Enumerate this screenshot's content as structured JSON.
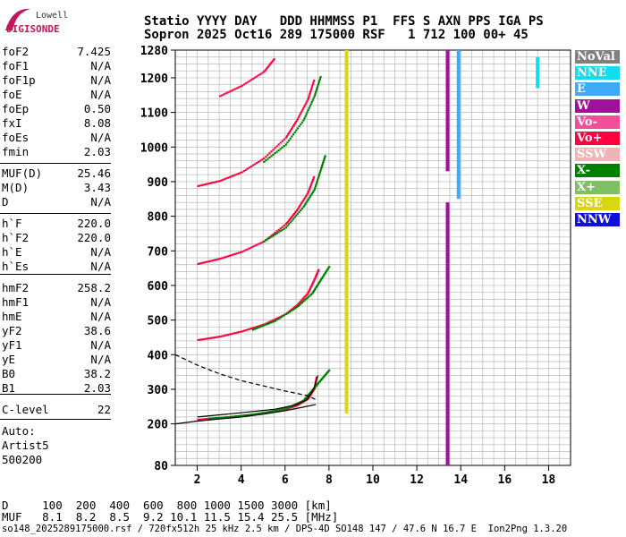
{
  "logo": {
    "line1": "Lowell",
    "line2": "DIGISONDE"
  },
  "header": {
    "line1": "Statio YYYY DAY   DDD HHMMSS P1  FFS S AXN PPS IGA PS",
    "line2": "Sopron 2025 Oct16 289 175000 RSF   1 712 100 00+ 45"
  },
  "params_group1": [
    {
      "name": "foF2",
      "value": "7.425"
    },
    {
      "name": "foF1",
      "value": "N/A"
    },
    {
      "name": "foF1p",
      "value": "N/A"
    },
    {
      "name": "foE",
      "value": "N/A"
    },
    {
      "name": "foEp",
      "value": "0.50"
    },
    {
      "name": "fxI",
      "value": "8.08"
    },
    {
      "name": "foEs",
      "value": "N/A"
    },
    {
      "name": "fmin",
      "value": "2.03"
    }
  ],
  "params_group2": [
    {
      "name": "MUF(D)",
      "value": "25.46"
    },
    {
      "name": "M(D)",
      "value": "3.43"
    },
    {
      "name": "D",
      "value": "N/A"
    }
  ],
  "params_group3": [
    {
      "name": "h`F",
      "value": "220.0"
    },
    {
      "name": "h`F2",
      "value": "220.0"
    },
    {
      "name": "h`E",
      "value": "N/A"
    },
    {
      "name": "h`Es",
      "value": "N/A"
    }
  ],
  "params_group4": [
    {
      "name": "hmF2",
      "value": "258.2"
    },
    {
      "name": "hmF1",
      "value": "N/A"
    },
    {
      "name": "hmE",
      "value": "N/A"
    },
    {
      "name": "yF2",
      "value": "38.6"
    },
    {
      "name": "yF1",
      "value": "N/A"
    },
    {
      "name": "yE",
      "value": "N/A"
    },
    {
      "name": "B0",
      "value": "38.2"
    },
    {
      "name": "B1",
      "value": "2.03"
    }
  ],
  "params_group5": [
    {
      "name": "C-level",
      "value": "22"
    }
  ],
  "auto": {
    "label": "Auto:",
    "artist": "Artist5",
    "code": "500200"
  },
  "legend": [
    {
      "label": "NoVal",
      "color": "#808080"
    },
    {
      "label": "NNE",
      "color": "#11ddee"
    },
    {
      "label": "E",
      "color": "#3fa9f5"
    },
    {
      "label": "W",
      "color": "#a0109a"
    },
    {
      "label": "Vo-",
      "color": "#f0509a"
    },
    {
      "label": "Vo+",
      "color": "#ff0040"
    },
    {
      "label": "SSW",
      "color": "#f0b4b4"
    },
    {
      "label": "X-",
      "color": "#008000"
    },
    {
      "label": "X+",
      "color": "#80c060"
    },
    {
      "label": "SSE",
      "color": "#d8d810"
    },
    {
      "label": "NNW",
      "color": "#1010dd"
    }
  ],
  "distance_row": {
    "line1": "D     100  200  400  600  800 1000 1500 3000 [km]",
    "line2": "MUF   8.1  8.2  8.5  9.2 10.1 11.5 15.4 25.5 [MHz]"
  },
  "footer": "so148_2025289175000.rsf / 720fx512h 25 kHz 2.5 km / DPS-4D SO148 147 / 47.6 N 16.7 E  Ion2Png 1.3.20",
  "chart_data": {
    "type": "scatter",
    "title": "",
    "xlabel": "",
    "ylabel": "",
    "xlim": [
      1,
      19
    ],
    "ylim": [
      80,
      1280
    ],
    "x_ticks": [
      2,
      4,
      6,
      8,
      10,
      12,
      14,
      16,
      18
    ],
    "y_ticks": [
      80,
      200,
      300,
      400,
      500,
      600,
      700,
      800,
      900,
      1000,
      1100,
      1200,
      1280
    ],
    "grid": true,
    "legend_placement": "right",
    "series": [
      {
        "color": "#ff0040",
        "points": [
          [
            2.0,
            215
          ],
          [
            3.0,
            220
          ],
          [
            4.0,
            226
          ],
          [
            5.0,
            234
          ],
          [
            6.0,
            246
          ],
          [
            6.5,
            256
          ],
          [
            7.0,
            275
          ],
          [
            7.3,
            305
          ],
          [
            7.4,
            340
          ]
        ]
      },
      {
        "color": "#008000",
        "points": [
          [
            2.5,
            218
          ],
          [
            3.5,
            223
          ],
          [
            4.5,
            230
          ],
          [
            5.5,
            240
          ],
          [
            6.2,
            252
          ],
          [
            6.8,
            270
          ],
          [
            7.2,
            300
          ],
          [
            7.6,
            330
          ],
          [
            8.0,
            360
          ]
        ]
      },
      {
        "color": "#ff0040",
        "points": [
          [
            2.0,
            445
          ],
          [
            3.0,
            455
          ],
          [
            4.0,
            470
          ],
          [
            5.0,
            490
          ],
          [
            6.0,
            520
          ],
          [
            6.5,
            545
          ],
          [
            7.0,
            580
          ],
          [
            7.3,
            620
          ],
          [
            7.5,
            650
          ]
        ]
      },
      {
        "color": "#008000",
        "points": [
          [
            4.5,
            475
          ],
          [
            5.5,
            500
          ],
          [
            6.5,
            540
          ],
          [
            7.2,
            580
          ],
          [
            7.6,
            620
          ],
          [
            8.0,
            660
          ]
        ]
      },
      {
        "color": "#ff0040",
        "points": [
          [
            2.0,
            665
          ],
          [
            3.0,
            680
          ],
          [
            4.0,
            700
          ],
          [
            5.0,
            730
          ],
          [
            6.0,
            780
          ],
          [
            6.5,
            820
          ],
          [
            7.0,
            870
          ],
          [
            7.3,
            920
          ]
        ]
      },
      {
        "color": "#008000",
        "points": [
          [
            5.0,
            730
          ],
          [
            6.0,
            770
          ],
          [
            6.8,
            830
          ],
          [
            7.3,
            880
          ],
          [
            7.6,
            940
          ],
          [
            7.8,
            980
          ]
        ]
      },
      {
        "color": "#ff0040",
        "points": [
          [
            2.0,
            890
          ],
          [
            3.0,
            905
          ],
          [
            4.0,
            930
          ],
          [
            5.0,
            970
          ],
          [
            6.0,
            1030
          ],
          [
            6.5,
            1080
          ],
          [
            7.0,
            1140
          ],
          [
            7.3,
            1200
          ]
        ]
      },
      {
        "color": "#008000",
        "points": [
          [
            5.0,
            960
          ],
          [
            6.0,
            1010
          ],
          [
            6.8,
            1080
          ],
          [
            7.3,
            1150
          ],
          [
            7.6,
            1210
          ]
        ]
      },
      {
        "color": "#ff0040",
        "points": [
          [
            3.0,
            1150
          ],
          [
            4.0,
            1180
          ],
          [
            5.0,
            1220
          ],
          [
            5.5,
            1260
          ]
        ]
      }
    ],
    "traces": [
      {
        "name": "virtual height",
        "style": "solid",
        "points": [
          [
            1.0,
            200
          ],
          [
            2.0,
            208
          ],
          [
            3.0,
            214
          ],
          [
            4.0,
            220
          ],
          [
            5.0,
            228
          ],
          [
            6.0,
            238
          ],
          [
            6.8,
            248
          ],
          [
            7.4,
            256
          ]
        ]
      },
      {
        "name": "profile",
        "style": "solid",
        "points": [
          [
            2.0,
            220
          ],
          [
            4.0,
            232
          ],
          [
            5.5,
            242
          ],
          [
            6.5,
            255
          ],
          [
            7.0,
            270
          ],
          [
            7.3,
            300
          ],
          [
            7.5,
            340
          ]
        ]
      },
      {
        "name": "profile extrapolated",
        "style": "dashed",
        "points": [
          [
            1.0,
            400
          ],
          [
            2.0,
            370
          ],
          [
            3.0,
            345
          ],
          [
            4.0,
            325
          ],
          [
            5.0,
            310
          ],
          [
            6.0,
            295
          ],
          [
            7.0,
            282
          ],
          [
            7.4,
            270
          ]
        ]
      }
    ],
    "vertical_bands": [
      {
        "x": 8.8,
        "y0": 560,
        "y1": 1280,
        "color": "#d8d810"
      },
      {
        "x": 8.8,
        "y0": 230,
        "y1": 560,
        "color": "#d8d810"
      },
      {
        "x": 13.4,
        "y0": 80,
        "y1": 840,
        "color": "#a0109a"
      },
      {
        "x": 13.4,
        "y0": 930,
        "y1": 1280,
        "color": "#a0109a"
      },
      {
        "x": 13.9,
        "y0": 850,
        "y1": 1280,
        "color": "#3fa9f5"
      },
      {
        "x": 17.5,
        "y0": 1170,
        "y1": 1260,
        "color": "#11ddee"
      }
    ]
  }
}
